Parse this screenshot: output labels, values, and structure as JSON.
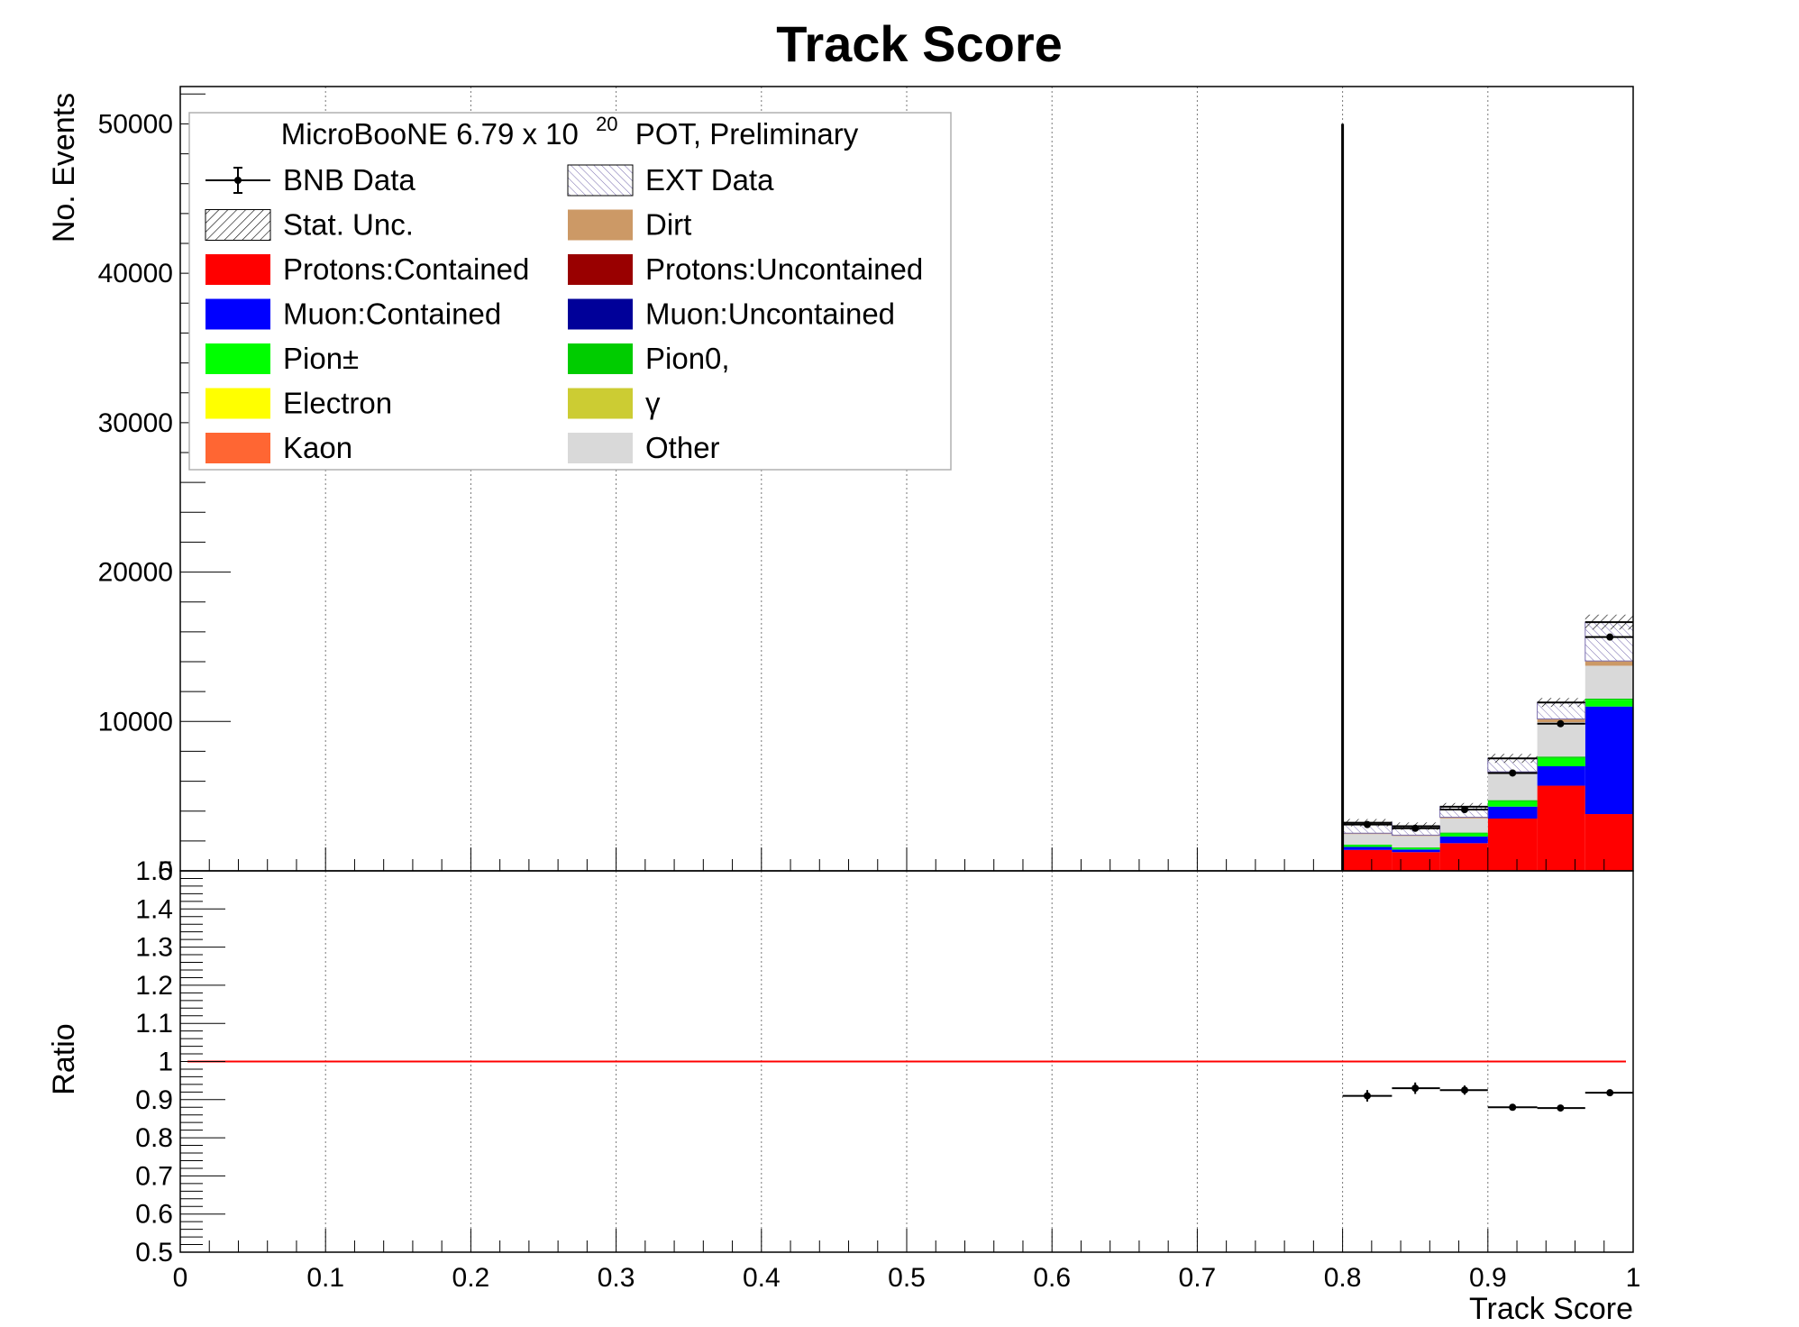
{
  "chart_data": {
    "type": "bar",
    "title": "Track Score",
    "xlabel": "Track Score",
    "ylabel": "No. Events",
    "ratio_ylabel": "Ratio",
    "xlim": [
      0,
      1
    ],
    "ylim": [
      0,
      52500
    ],
    "ratio_ylim": [
      0.5,
      1.5
    ],
    "grid": "vertical dotted",
    "legend_placement": "top-left",
    "legend_header": {
      "prefix": "MicroBooNE 6.79 x 10",
      "exponent": "20",
      "suffix": "POT, Preliminary"
    },
    "x_ticks": [
      "0",
      "0.1",
      "0.2",
      "0.3",
      "0.4",
      "0.5",
      "0.6",
      "0.7",
      "0.8",
      "0.9",
      "1"
    ],
    "y_ticks": [
      "0",
      "10000",
      "20000",
      "30000",
      "40000",
      "50000"
    ],
    "ratio_ticks": [
      "0.5",
      "0.6",
      "0.7",
      "0.8",
      "0.9",
      "1",
      "1.1",
      "1.2",
      "1.3",
      "1.4",
      "1.5"
    ],
    "legend": [
      {
        "label": "BNB Data",
        "kind": "data",
        "color": "#000000"
      },
      {
        "label": "EXT Data",
        "kind": "ext",
        "color": "#7b6fb0"
      },
      {
        "label": "Stat. Unc.",
        "kind": "hatch",
        "color": "#000000"
      },
      {
        "label": "Dirt",
        "kind": "fill",
        "color": "#cc9966"
      },
      {
        "label": "Protons:Contained",
        "kind": "fill",
        "color": "#ff0000"
      },
      {
        "label": "Protons:Uncontained",
        "kind": "fill",
        "color": "#990000"
      },
      {
        "label": "Muon:Contained",
        "kind": "fill",
        "color": "#0000ff"
      },
      {
        "label": "Muon:Uncontained",
        "kind": "fill",
        "color": "#000099"
      },
      {
        "label": "Pion±",
        "kind": "fill",
        "color": "#00ff00"
      },
      {
        "label": "Pion0,",
        "kind": "fill",
        "color": "#00cc00"
      },
      {
        "label": "Electron",
        "kind": "fill",
        "color": "#ffff00"
      },
      {
        "label": "γ",
        "kind": "fill",
        "color": "#cccc33"
      },
      {
        "label": "Kaon",
        "kind": "fill",
        "color": "#ff6633"
      },
      {
        "label": "Other",
        "kind": "fill",
        "color": "#d9d9d9"
      }
    ],
    "bins": [
      {
        "x0": 0.8,
        "x1": 0.834
      },
      {
        "x0": 0.834,
        "x1": 0.867
      },
      {
        "x0": 0.867,
        "x1": 0.9
      },
      {
        "x0": 0.9,
        "x1": 0.934
      },
      {
        "x0": 0.934,
        "x1": 0.967
      },
      {
        "x0": 0.967,
        "x1": 1.0
      }
    ],
    "series": [
      {
        "name": "Protons:Contained",
        "color": "#ff0000",
        "values": [
          1400,
          1250,
          1850,
          3500,
          5700,
          3800
        ]
      },
      {
        "name": "Muon:Contained",
        "color": "#0000ff",
        "values": [
          200,
          180,
          450,
          800,
          1300,
          7200
        ]
      },
      {
        "name": "Pion±",
        "color": "#00ff00",
        "values": [
          120,
          100,
          200,
          350,
          550,
          450
        ]
      },
      {
        "name": "Pion0,",
        "color": "#00cc00",
        "values": [
          40,
          40,
          60,
          80,
          100,
          80
        ]
      },
      {
        "name": "Other",
        "color": "#d9d9d9",
        "values": [
          700,
          760,
          950,
          1800,
          2300,
          2200
        ]
      },
      {
        "name": "Dirt",
        "color": "#cc9966",
        "values": [
          60,
          60,
          80,
          100,
          220,
          320
        ]
      },
      {
        "name": "EXT Data",
        "color": "#ffffff",
        "values": [
          700,
          600,
          700,
          900,
          1100,
          2600
        ]
      }
    ],
    "stat_unc": [
      250,
      250,
      250,
      300,
      300,
      500
    ],
    "data": {
      "name": "BNB Data",
      "x": [
        0.817,
        0.85,
        0.884,
        0.917,
        0.95,
        0.984
      ],
      "y": [
        3100,
        2850,
        4100,
        6550,
        9850,
        15650
      ],
      "yerr": [
        60,
        55,
        65,
        80,
        100,
        125
      ]
    },
    "vertical_line": {
      "x": 0.8,
      "y_top": 50000
    },
    "ratio": {
      "x": [
        0.817,
        0.85,
        0.884,
        0.917,
        0.95,
        0.984
      ],
      "y": [
        0.91,
        0.93,
        0.925,
        0.88,
        0.878,
        0.918
      ],
      "yerr": [
        0.015,
        0.015,
        0.012,
        0.008,
        0.006,
        0.004
      ],
      "reference": 1,
      "reference_color": "#ff0000"
    }
  }
}
